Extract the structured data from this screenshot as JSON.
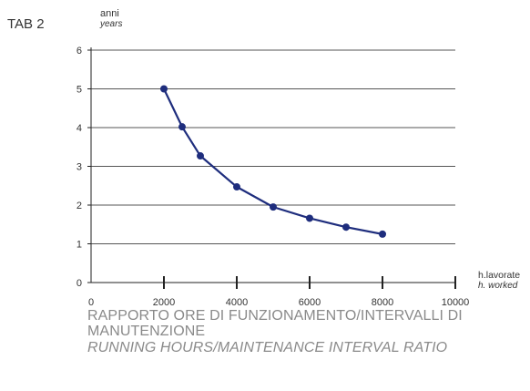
{
  "tab_label": "TAB 2",
  "caption": {
    "italian": "RAPPORTO ORE DI FUNZIONAMENTO/INTERVALLI DI MANUTENZIONE",
    "english": "RUNNING HOURS/MAINTENANCE INTERVAL RATIO"
  },
  "colors": {
    "series": "#1e2d7d",
    "axis": "#222222",
    "grid": "#555555",
    "caption": "#8a8a8a"
  },
  "chart_data": {
    "type": "line",
    "title": "",
    "ylabel": "anni",
    "ylabel_secondary": "years",
    "xlabel": "h.lavorate",
    "xlabel_secondary": "h. worked",
    "xlim": [
      0,
      10000
    ],
    "ylim": [
      0,
      6
    ],
    "x_ticks": [
      0,
      2000,
      4000,
      6000,
      8000,
      10000
    ],
    "x_tick_labels": [
      "0",
      "2000",
      "4000",
      "6000",
      "8000",
      "10000"
    ],
    "y_ticks": [
      0,
      1,
      2,
      3,
      4,
      5,
      6
    ],
    "y_tick_labels": [
      "0",
      "1",
      "2",
      "3",
      "4",
      "5",
      "6"
    ],
    "grid": "horizontal",
    "series": [
      {
        "x": [
          2000,
          2500,
          3000,
          4000,
          5000,
          6000,
          7000,
          8000
        ],
        "y": [
          5.0,
          4.02,
          3.27,
          2.47,
          1.95,
          1.66,
          1.43,
          1.25
        ]
      }
    ]
  }
}
